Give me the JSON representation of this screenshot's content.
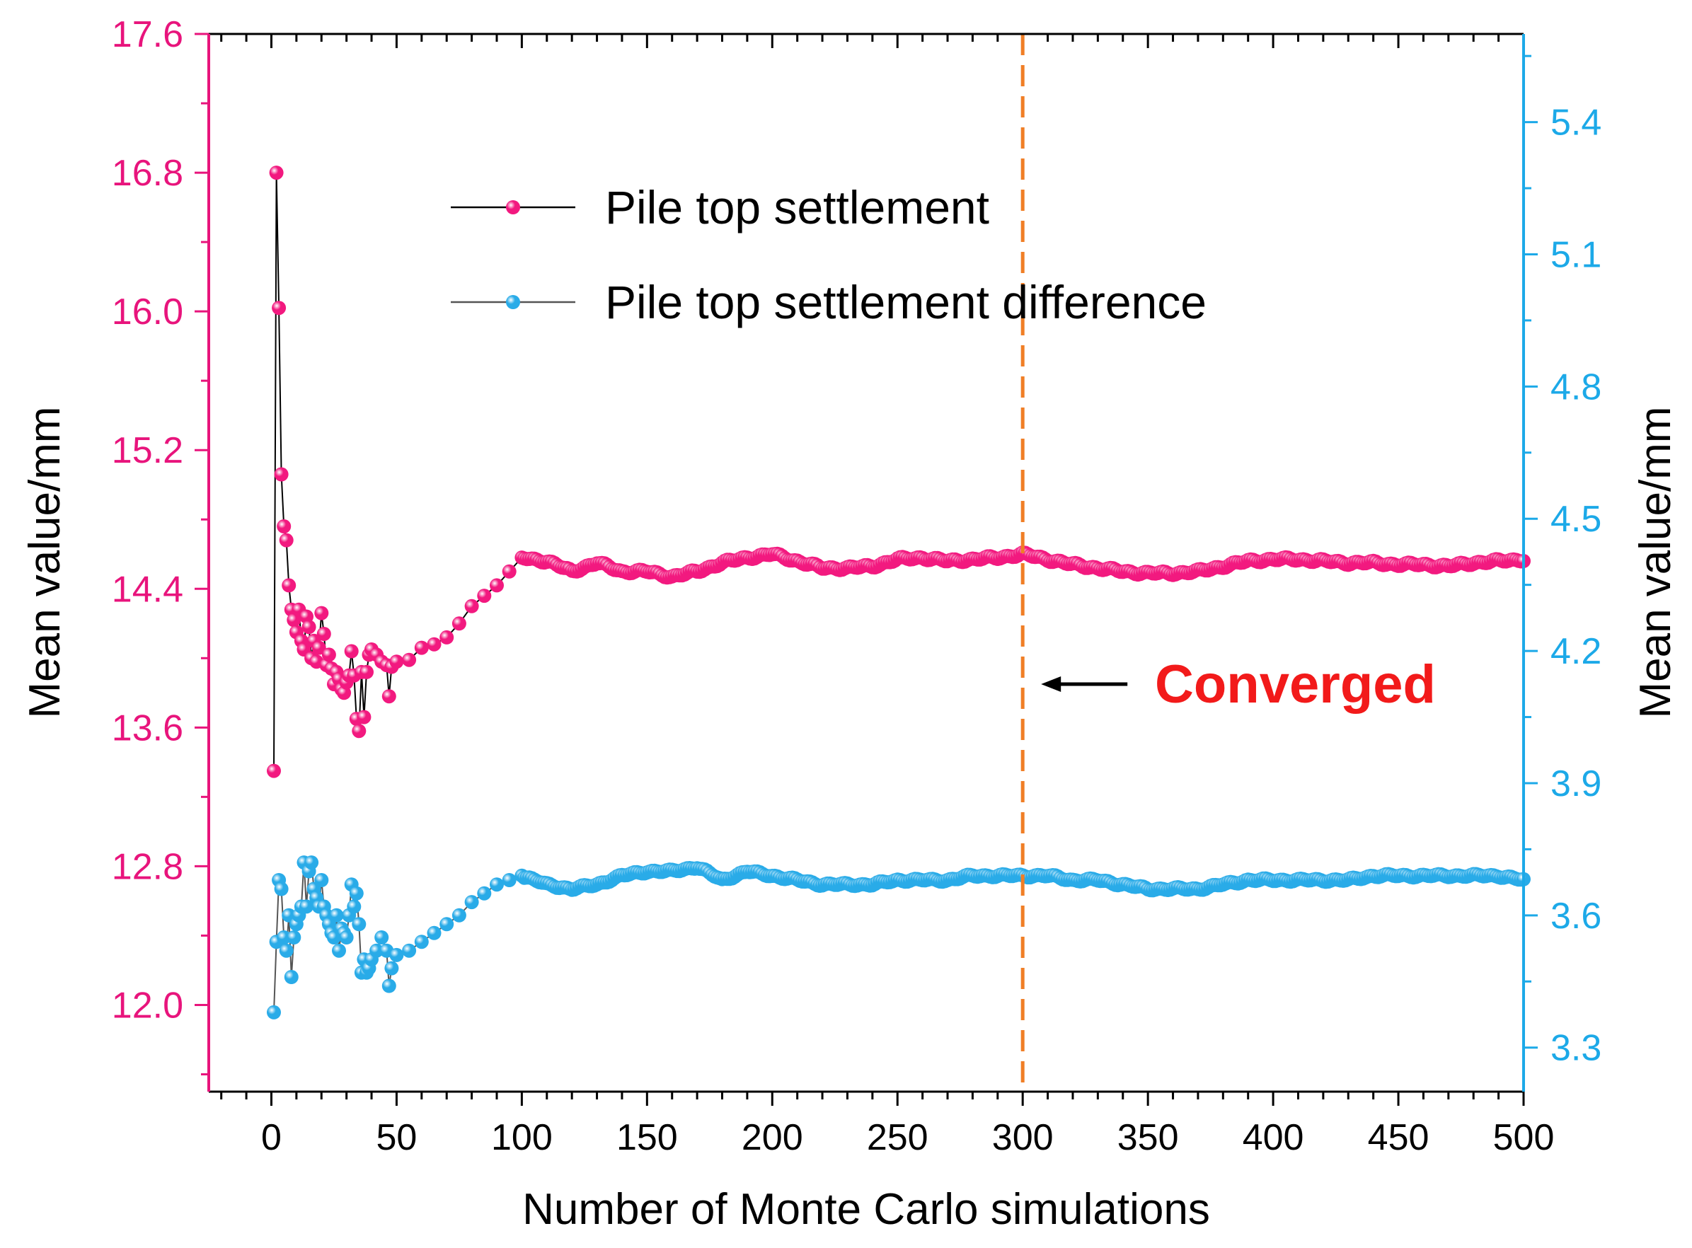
{
  "chart_data": {
    "type": "scatter",
    "title": "",
    "xlabel": "Number of Monte Carlo simulations",
    "ylabel_left": "Mean value/mm",
    "ylabel_right": "Mean value/mm",
    "xlim": [
      -25,
      500
    ],
    "xticks": [
      0,
      50,
      100,
      150,
      200,
      250,
      300,
      350,
      400,
      450,
      500
    ],
    "ylim_left": [
      11.5,
      17.6
    ],
    "yticks_left": [
      12.0,
      12.8,
      13.6,
      14.4,
      15.2,
      16.0,
      16.8,
      17.6
    ],
    "ylim_right": [
      3.2,
      5.6
    ],
    "yticks_right": [
      3.3,
      3.6,
      3.9,
      4.2,
      4.5,
      4.8,
      5.1,
      5.4
    ],
    "left_axis_color": "#E8147C",
    "right_axis_color": "#1CA9E8",
    "legend_position": "top-center",
    "series": [
      {
        "name": "Pile top settlement",
        "axis": "left",
        "marker_color": "#F2197F",
        "line_color": "#000000",
        "early_points": [
          [
            1,
            13.35
          ],
          [
            2,
            16.8
          ],
          [
            3,
            16.02
          ],
          [
            4,
            15.06
          ],
          [
            5,
            14.76
          ],
          [
            6,
            14.68
          ],
          [
            7,
            14.42
          ],
          [
            8,
            14.28
          ],
          [
            9,
            14.22
          ],
          [
            10,
            14.15
          ],
          [
            11,
            14.28
          ],
          [
            12,
            14.1
          ],
          [
            13,
            14.05
          ],
          [
            14,
            14.24
          ],
          [
            15,
            14.18
          ],
          [
            16,
            14.0
          ],
          [
            17,
            14.1
          ],
          [
            18,
            13.98
          ],
          [
            19,
            14.06
          ],
          [
            20,
            14.26
          ],
          [
            21,
            14.14
          ],
          [
            22,
            13.96
          ],
          [
            23,
            14.02
          ],
          [
            24,
            13.94
          ],
          [
            25,
            13.85
          ],
          [
            26,
            13.92
          ],
          [
            27,
            13.88
          ],
          [
            28,
            13.82
          ],
          [
            29,
            13.8
          ],
          [
            30,
            13.86
          ],
          [
            31,
            13.9
          ],
          [
            32,
            14.04
          ],
          [
            33,
            13.9
          ],
          [
            34,
            13.65
          ],
          [
            35,
            13.58
          ],
          [
            36,
            13.92
          ],
          [
            37,
            13.66
          ],
          [
            38,
            13.92
          ],
          [
            39,
            14.02
          ],
          [
            40,
            14.05
          ],
          [
            42,
            14.02
          ],
          [
            44,
            13.98
          ],
          [
            46,
            13.96
          ],
          [
            47,
            13.78
          ],
          [
            48,
            13.95
          ],
          [
            50,
            13.98
          ],
          [
            55,
            13.99
          ],
          [
            60,
            14.06
          ],
          [
            65,
            14.08
          ],
          [
            70,
            14.12
          ],
          [
            75,
            14.2
          ],
          [
            80,
            14.3
          ],
          [
            85,
            14.36
          ],
          [
            90,
            14.42
          ],
          [
            95,
            14.5
          ],
          [
            100,
            14.58
          ]
        ],
        "trend": [
          [
            100,
            14.58
          ],
          [
            110,
            14.56
          ],
          [
            120,
            14.5
          ],
          [
            130,
            14.55
          ],
          [
            140,
            14.5
          ],
          [
            150,
            14.5
          ],
          [
            160,
            14.47
          ],
          [
            170,
            14.5
          ],
          [
            180,
            14.55
          ],
          [
            190,
            14.58
          ],
          [
            200,
            14.6
          ],
          [
            210,
            14.56
          ],
          [
            220,
            14.52
          ],
          [
            230,
            14.52
          ],
          [
            240,
            14.53
          ],
          [
            250,
            14.57
          ],
          [
            260,
            14.58
          ],
          [
            270,
            14.56
          ],
          [
            280,
            14.57
          ],
          [
            290,
            14.58
          ],
          [
            300,
            14.6
          ],
          [
            310,
            14.57
          ],
          [
            320,
            14.54
          ],
          [
            330,
            14.52
          ],
          [
            340,
            14.5
          ],
          [
            350,
            14.49
          ],
          [
            360,
            14.49
          ],
          [
            370,
            14.5
          ],
          [
            380,
            14.53
          ],
          [
            390,
            14.56
          ],
          [
            400,
            14.57
          ],
          [
            410,
            14.57
          ],
          [
            420,
            14.56
          ],
          [
            430,
            14.55
          ],
          [
            440,
            14.55
          ],
          [
            450,
            14.54
          ],
          [
            460,
            14.54
          ],
          [
            470,
            14.53
          ],
          [
            480,
            14.55
          ],
          [
            490,
            14.56
          ],
          [
            500,
            14.57
          ]
        ]
      },
      {
        "name": "Pile top settlement difference",
        "axis": "right",
        "marker_color": "#29ABE8",
        "line_color": "#555555",
        "early_points": [
          [
            1,
            3.38
          ],
          [
            2,
            3.54
          ],
          [
            3,
            3.68
          ],
          [
            4,
            3.66
          ],
          [
            5,
            3.55
          ],
          [
            6,
            3.52
          ],
          [
            7,
            3.6
          ],
          [
            8,
            3.46
          ],
          [
            9,
            3.55
          ],
          [
            10,
            3.58
          ],
          [
            11,
            3.6
          ],
          [
            12,
            3.62
          ],
          [
            13,
            3.72
          ],
          [
            14,
            3.62
          ],
          [
            15,
            3.7
          ],
          [
            16,
            3.72
          ],
          [
            17,
            3.66
          ],
          [
            18,
            3.64
          ],
          [
            19,
            3.62
          ],
          [
            20,
            3.68
          ],
          [
            21,
            3.62
          ],
          [
            22,
            3.6
          ],
          [
            23,
            3.58
          ],
          [
            24,
            3.56
          ],
          [
            25,
            3.55
          ],
          [
            26,
            3.6
          ],
          [
            27,
            3.52
          ],
          [
            28,
            3.57
          ],
          [
            29,
            3.56
          ],
          [
            30,
            3.55
          ],
          [
            31,
            3.6
          ],
          [
            32,
            3.67
          ],
          [
            33,
            3.62
          ],
          [
            34,
            3.65
          ],
          [
            35,
            3.58
          ],
          [
            36,
            3.47
          ],
          [
            37,
            3.5
          ],
          [
            38,
            3.47
          ],
          [
            39,
            3.48
          ],
          [
            40,
            3.5
          ],
          [
            42,
            3.52
          ],
          [
            44,
            3.55
          ],
          [
            46,
            3.52
          ],
          [
            47,
            3.44
          ],
          [
            48,
            3.48
          ],
          [
            50,
            3.51
          ],
          [
            55,
            3.52
          ],
          [
            60,
            3.54
          ],
          [
            65,
            3.56
          ],
          [
            70,
            3.58
          ],
          [
            75,
            3.6
          ],
          [
            80,
            3.63
          ],
          [
            85,
            3.65
          ],
          [
            90,
            3.67
          ],
          [
            95,
            3.68
          ],
          [
            100,
            3.69
          ]
        ],
        "trend": [
          [
            100,
            3.69
          ],
          [
            110,
            3.67
          ],
          [
            120,
            3.66
          ],
          [
            130,
            3.67
          ],
          [
            140,
            3.69
          ],
          [
            150,
            3.7
          ],
          [
            160,
            3.7
          ],
          [
            170,
            3.71
          ],
          [
            180,
            3.68
          ],
          [
            190,
            3.7
          ],
          [
            200,
            3.69
          ],
          [
            210,
            3.68
          ],
          [
            220,
            3.67
          ],
          [
            230,
            3.67
          ],
          [
            240,
            3.67
          ],
          [
            250,
            3.68
          ],
          [
            260,
            3.68
          ],
          [
            270,
            3.68
          ],
          [
            280,
            3.69
          ],
          [
            290,
            3.69
          ],
          [
            300,
            3.69
          ],
          [
            310,
            3.69
          ],
          [
            320,
            3.68
          ],
          [
            330,
            3.68
          ],
          [
            340,
            3.67
          ],
          [
            350,
            3.66
          ],
          [
            360,
            3.66
          ],
          [
            370,
            3.66
          ],
          [
            380,
            3.67
          ],
          [
            390,
            3.68
          ],
          [
            400,
            3.68
          ],
          [
            410,
            3.68
          ],
          [
            420,
            3.68
          ],
          [
            430,
            3.68
          ],
          [
            440,
            3.69
          ],
          [
            450,
            3.69
          ],
          [
            460,
            3.69
          ],
          [
            470,
            3.69
          ],
          [
            480,
            3.69
          ],
          [
            490,
            3.69
          ],
          [
            500,
            3.68
          ]
        ]
      }
    ],
    "annotations": [
      {
        "type": "vline",
        "x": 300,
        "color": "#F07E26",
        "style": "dashed"
      },
      {
        "type": "arrow",
        "text": "Converged",
        "color": "#F21A1A",
        "arrow_color": "#000000",
        "at_x": 300,
        "at_y_left": 13.85
      }
    ]
  }
}
